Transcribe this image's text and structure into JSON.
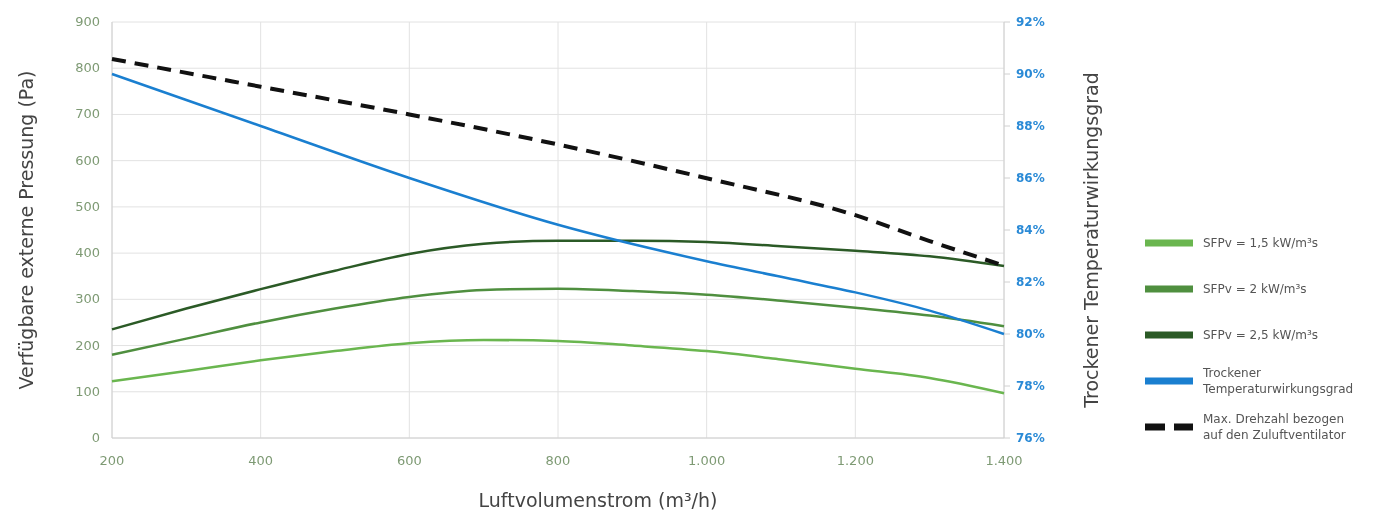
{
  "chart_data": {
    "type": "line",
    "xlabel": "Luftvolumenstrom (m³/h)",
    "ylabel": "Verfügbare externe Pressung (Pa)",
    "y2label": "Trockener Temperaturwirkungsgrad",
    "xlim": [
      200,
      1400
    ],
    "xticks": [
      200,
      400,
      600,
      800,
      {
        "value": 1000,
        "label": "1.000"
      },
      {
        "value": 1200,
        "label": "1.200"
      },
      {
        "value": 1400,
        "label": "1.400"
      }
    ],
    "ylim": [
      0,
      900
    ],
    "yticks": [
      0,
      100,
      200,
      300,
      400,
      500,
      600,
      700,
      800,
      900
    ],
    "y2lim": [
      76,
      92
    ],
    "y2ticks": [
      {
        "value": 76,
        "label": "76%"
      },
      {
        "value": 78,
        "label": "78%"
      },
      {
        "value": 80,
        "label": "80%"
      },
      {
        "value": 82,
        "label": "82%"
      },
      {
        "value": 84,
        "label": "84%"
      },
      {
        "value": 86,
        "label": "86%"
      },
      {
        "value": 88,
        "label": "88%"
      },
      {
        "value": 90,
        "label": "90%"
      },
      {
        "value": 92,
        "label": "92%"
      }
    ],
    "grid": true,
    "legend": "right",
    "marker": "none",
    "series": [
      {
        "name": "SFPv = 1,5 kW/m³s",
        "color": "#6ab64f",
        "x": [
          200,
          300,
          400,
          500,
          600,
          700,
          800,
          900,
          1000,
          1100,
          1200,
          1300,
          1400
        ],
        "values": [
          123,
          145,
          168,
          188,
          205,
          212,
          210,
          200,
          188,
          170,
          150,
          130,
          97
        ]
      },
      {
        "name": "SFPv = 2 kW/m³s",
        "color": "#4f8f3f",
        "x": [
          200,
          300,
          400,
          500,
          600,
          700,
          800,
          900,
          1000,
          1100,
          1200,
          1300,
          1400
        ],
        "values": [
          180,
          215,
          250,
          280,
          305,
          320,
          323,
          318,
          310,
          297,
          282,
          265,
          242
        ]
      },
      {
        "name": "SFPv = 2,5 kW/m³s",
        "color": "#2b5a26",
        "x": [
          200,
          300,
          400,
          500,
          600,
          700,
          800,
          900,
          1000,
          1100,
          1200,
          1300,
          1400
        ],
        "values": [
          235,
          280,
          322,
          362,
          398,
          420,
          427,
          427,
          424,
          415,
          405,
          393,
          372
        ]
      },
      {
        "name": "Trockener Temperaturwirkungsgrad",
        "color": "#1a7fd0",
        "axis": "y2",
        "x": [
          200,
          400,
          600,
          800,
          1000,
          1100,
          1200,
          1300,
          1400
        ],
        "values": [
          90.0,
          88.0,
          86.0,
          84.2,
          82.8,
          82.2,
          81.6,
          80.9,
          80.0
        ]
      },
      {
        "name": "Max. Drehzahl bezogen auf den Zuluftventilator",
        "color": "#111111",
        "line_style": "dashed",
        "x": [
          200,
          400,
          600,
          800,
          1000,
          1200,
          1300,
          1400
        ],
        "values": [
          820,
          760,
          700,
          635,
          562,
          482,
          426,
          373
        ]
      }
    ]
  }
}
